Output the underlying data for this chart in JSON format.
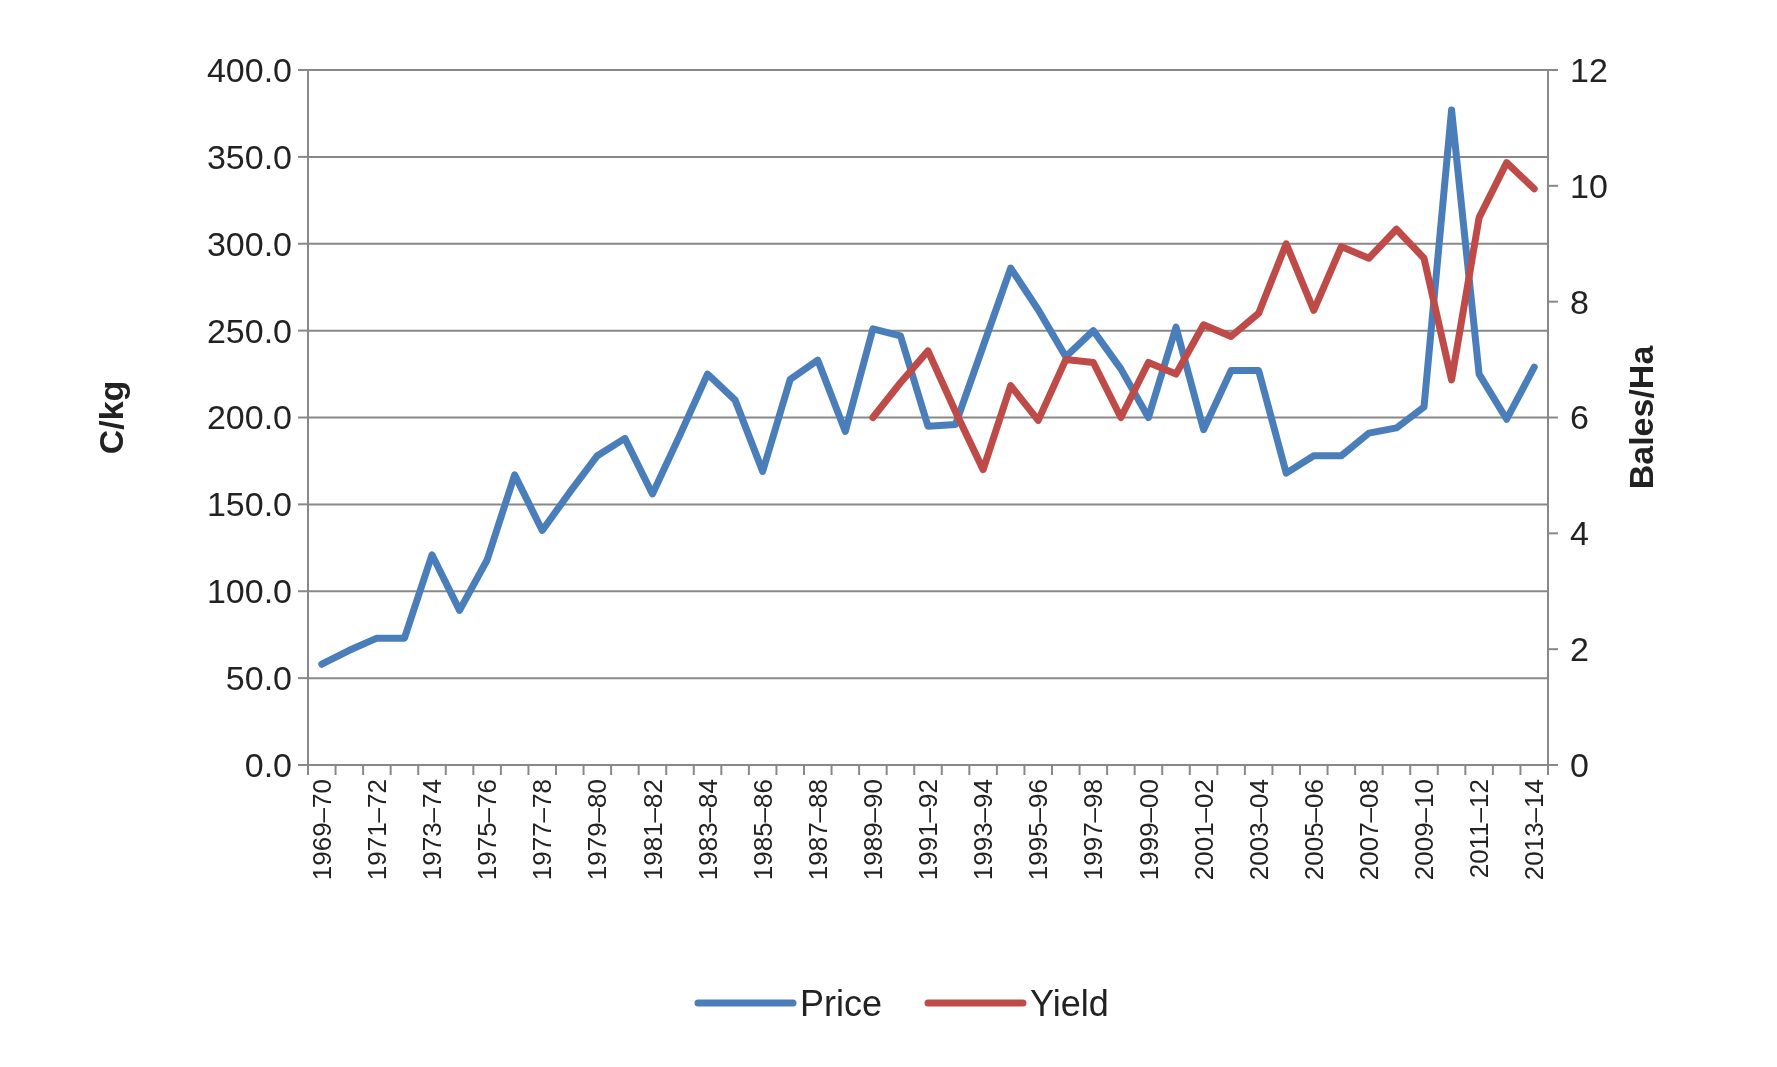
{
  "chart_data": {
    "type": "line",
    "ylabel": "C/kg",
    "y2label": "Bales/Ha",
    "categories": [
      "1969–70",
      null,
      "1971–72",
      null,
      "1973–74",
      null,
      "1975–76",
      null,
      "1977–78",
      null,
      "1979–80",
      null,
      "1981–82",
      null,
      "1983–84",
      null,
      "1985–86",
      null,
      "1987–88",
      null,
      "1989–90",
      null,
      "1991–92",
      null,
      "1993–94",
      null,
      "1995–96",
      null,
      "1997–98",
      null,
      "1999–00",
      null,
      "2001–02",
      null,
      "2003–04",
      null,
      "2005–06",
      null,
      "2007–08",
      null,
      "2009–10",
      null,
      "2011–12",
      null,
      "2013–14"
    ],
    "series": [
      {
        "name": "Price",
        "color": "#4a7ebb",
        "values": [
          58,
          66,
          73,
          73,
          121,
          89,
          118,
          167,
          135,
          157,
          178,
          188,
          156,
          190,
          225,
          210,
          169,
          222,
          233,
          192,
          251,
          247,
          195,
          196,
          241,
          286,
          262,
          235,
          250,
          228,
          200,
          252,
          193,
          227,
          227,
          168,
          178,
          178,
          191,
          194,
          206,
          377,
          225,
          199,
          229
        ]
      },
      {
        "name": "Yield",
        "color": "#be4b48",
        "axis": "y2",
        "values": [
          null,
          null,
          null,
          null,
          null,
          null,
          null,
          null,
          null,
          null,
          null,
          null,
          null,
          null,
          null,
          null,
          null,
          null,
          null,
          null,
          6.0,
          6.6,
          7.15,
          6.1,
          5.1,
          6.55,
          5.95,
          7.0,
          6.95,
          6.0,
          6.95,
          6.75,
          7.6,
          7.4,
          7.8,
          9.0,
          7.85,
          8.95,
          8.75,
          9.25,
          8.75,
          6.65,
          9.45,
          10.4,
          9.95
        ]
      }
    ],
    "ylim": [
      0,
      400
    ],
    "yticks": [
      {
        "value": 0,
        "label": "0.0"
      },
      {
        "value": 50,
        "label": "50.0"
      },
      {
        "value": 100,
        "label": "100.0"
      },
      {
        "value": 150,
        "label": "150.0"
      },
      {
        "value": 200,
        "label": "200.0"
      },
      {
        "value": 250,
        "label": "250.0"
      },
      {
        "value": 300,
        "label": "300.0"
      },
      {
        "value": 350,
        "label": "350.0"
      },
      {
        "value": 400,
        "label": "400.0"
      }
    ],
    "y2lim": [
      0,
      12
    ],
    "y2ticks": [
      0,
      2,
      4,
      6,
      8,
      10,
      12
    ],
    "grid": "y",
    "legend": "bottom",
    "marker": "none",
    "line_style": "solid"
  }
}
